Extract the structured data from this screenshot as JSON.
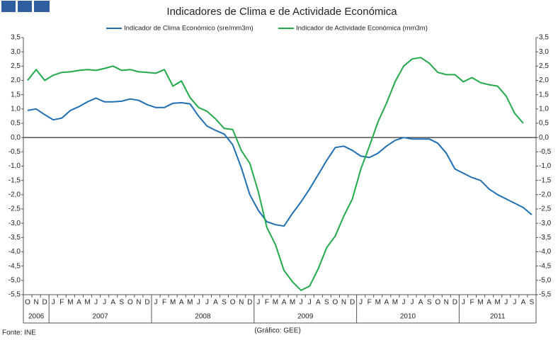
{
  "chart_data": {
    "type": "line",
    "title": "Indicadores de Clima e de Actividade Económica",
    "categories": [
      "O",
      "N",
      "D",
      "J",
      "F",
      "M",
      "A",
      "M",
      "J",
      "J",
      "A",
      "S",
      "O",
      "N",
      "D",
      "J",
      "F",
      "M",
      "A",
      "M",
      "J",
      "J",
      "A",
      "S",
      "O",
      "N",
      "D",
      "J",
      "F",
      "M",
      "A",
      "M",
      "J",
      "J",
      "A",
      "S",
      "O",
      "N",
      "D",
      "J",
      "F",
      "M",
      "A",
      "M",
      "J",
      "J",
      "A",
      "S",
      "O",
      "N",
      "D",
      "J",
      "F",
      "M",
      "A",
      "M",
      "J",
      "J",
      "A",
      "S"
    ],
    "years": [
      "2006",
      "2007",
      "2008",
      "2009",
      "2010",
      "2011"
    ],
    "series": [
      {
        "name": "Indicador de Clima Económico (sre/mm3m)",
        "color": "#1f6fb4",
        "values": [
          0.95,
          1.0,
          0.8,
          0.62,
          0.68,
          0.95,
          1.08,
          1.25,
          1.38,
          1.25,
          1.25,
          1.27,
          1.35,
          1.3,
          1.15,
          1.05,
          1.05,
          1.2,
          1.22,
          1.18,
          0.75,
          0.4,
          0.25,
          0.12,
          -0.25,
          -1.05,
          -2.0,
          -2.55,
          -2.95,
          -3.05,
          -3.1,
          -2.65,
          -2.25,
          -1.8,
          -1.3,
          -0.8,
          -0.35,
          -0.3,
          -0.45,
          -0.65,
          -0.7,
          -0.55,
          -0.3,
          -0.1,
          0.0,
          -0.05,
          -0.05,
          -0.05,
          -0.2,
          -0.55,
          -1.1,
          -1.25,
          -1.4,
          -1.5,
          -1.8,
          -2.0,
          -2.15,
          -2.3,
          -2.45,
          -2.7
        ]
      },
      {
        "name": "Indicador de Actividade Económica (mm3m)",
        "color": "#22a94a",
        "values": [
          2.0,
          2.38,
          2.0,
          2.18,
          2.28,
          2.3,
          2.35,
          2.38,
          2.35,
          2.42,
          2.5,
          2.35,
          2.38,
          2.3,
          2.28,
          2.25,
          2.38,
          1.8,
          1.98,
          1.4,
          1.05,
          0.92,
          0.65,
          0.32,
          0.28,
          -0.45,
          -0.9,
          -1.9,
          -3.15,
          -3.75,
          -4.65,
          -5.05,
          -5.35,
          -5.2,
          -4.6,
          -3.85,
          -3.45,
          -2.75,
          -2.15,
          -1.1,
          -0.3,
          0.55,
          1.2,
          1.95,
          2.5,
          2.75,
          2.8,
          2.6,
          2.28,
          2.2,
          2.2,
          1.95,
          2.1,
          1.92,
          1.85,
          1.8,
          1.45,
          0.85,
          0.5,
          null
        ]
      }
    ],
    "ylim": [
      -5.5,
      3.5
    ],
    "yticks": [
      {
        "value": -5.5,
        "label": "-5,5"
      },
      {
        "value": -5,
        "label": "-5,0"
      },
      {
        "value": -4.5,
        "label": "-4,5"
      },
      {
        "value": -4,
        "label": "-4,0"
      },
      {
        "value": -3.5,
        "label": "-3,5"
      },
      {
        "value": -3,
        "label": "-3,0"
      },
      {
        "value": -2.5,
        "label": "-2,5"
      },
      {
        "value": -2,
        "label": "-2,0"
      },
      {
        "value": -1.5,
        "label": "-1,5"
      },
      {
        "value": -1,
        "label": "-1,0"
      },
      {
        "value": -0.5,
        "label": "-0,5"
      },
      {
        "value": 0,
        "label": "0,0"
      },
      {
        "value": 0.5,
        "label": "0,5"
      },
      {
        "value": 1,
        "label": "1,0"
      },
      {
        "value": 1.5,
        "label": "1,5"
      },
      {
        "value": 2,
        "label": "2,0"
      },
      {
        "value": 2.5,
        "label": "2,5"
      },
      {
        "value": 3,
        "label": "3,0"
      },
      {
        "value": 3.5,
        "label": "3,5"
      }
    ],
    "y2lim": [
      -5.5,
      3.5
    ],
    "y2ticks": [
      {
        "value": -5.5,
        "label": "-5,5"
      },
      {
        "value": -5,
        "label": "-5,0"
      },
      {
        "value": -4.5,
        "label": "-4,5"
      },
      {
        "value": -4,
        "label": "-4,0"
      },
      {
        "value": -3.5,
        "label": "-3,5"
      },
      {
        "value": -3,
        "label": "-3,0"
      },
      {
        "value": -2.5,
        "label": "-2,5"
      },
      {
        "value": -2,
        "label": "-2,0"
      },
      {
        "value": -1.5,
        "label": "-1,5"
      },
      {
        "value": -1,
        "label": "-1,0"
      },
      {
        "value": -0.5,
        "label": "-0,5"
      },
      {
        "value": 0,
        "label": "0,0"
      },
      {
        "value": 0.5,
        "label": "0,5"
      },
      {
        "value": 1,
        "label": "1,0"
      },
      {
        "value": 1.5,
        "label": "1,5"
      },
      {
        "value": 2,
        "label": "2,0"
      },
      {
        "value": 2.5,
        "label": "2,5"
      },
      {
        "value": 3,
        "label": "3,0"
      },
      {
        "value": 3.5,
        "label": "3,5"
      }
    ],
    "source": "Fonte: INE",
    "credit": "(Gráfico: GEE)"
  }
}
